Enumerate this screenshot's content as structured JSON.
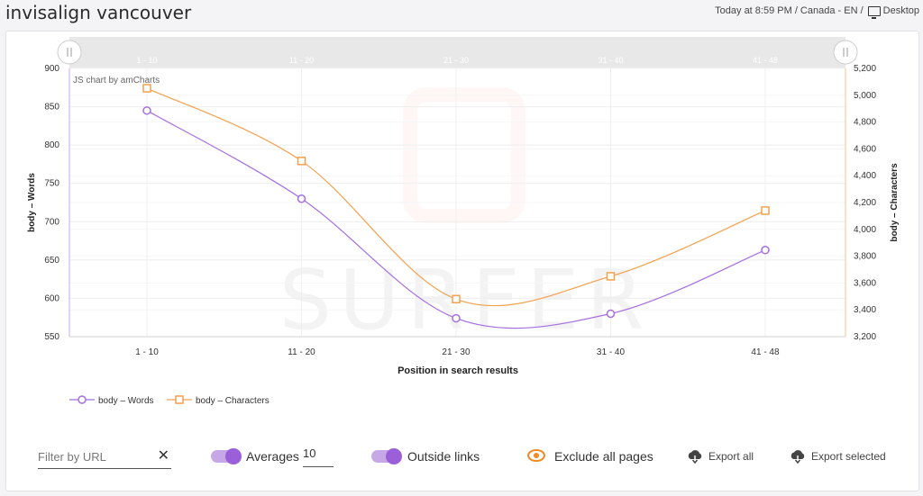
{
  "header": {
    "title": "invisalign vancouver",
    "meta_time": "Today at 8:59 PM / Canada - EN /",
    "meta_device": "Desktop"
  },
  "chart_data": {
    "type": "line",
    "categories": [
      "1 - 10",
      "11 - 20",
      "21 - 30",
      "31 - 40",
      "41 - 48"
    ],
    "series": [
      {
        "name": "body – Words",
        "axis": "left",
        "values": [
          845,
          730,
          574,
          580,
          663
        ],
        "color": "#a66ee0",
        "marker": "circle"
      },
      {
        "name": "body – Characters",
        "axis": "right",
        "values": [
          5052,
          4510,
          3480,
          3650,
          4140
        ],
        "color": "#f4a04c",
        "marker": "square"
      }
    ],
    "xlabel": "Position in search results",
    "ylabel_left": "body – Words",
    "ylabel_right": "body – Characters",
    "ylim_left": [
      550,
      900
    ],
    "ylim_right": [
      3200,
      5200
    ],
    "yticks_left": [
      "550",
      "600",
      "650",
      "700",
      "750",
      "800",
      "850",
      "900"
    ],
    "yticks_right": [
      "3,200",
      "3,400",
      "3,600",
      "3,800",
      "4,000",
      "4,200",
      "4,400",
      "4,600",
      "4,800",
      "5,000",
      "5,200"
    ],
    "credit": "JS chart by amCharts",
    "watermark": "SURFER",
    "legend_position": "bottom-left",
    "grid": true
  },
  "controls": {
    "filter_placeholder": "Filter by URL",
    "clear_icon": "close-icon",
    "averages_label": "Averages",
    "averages_value": "10",
    "outside_links_label": "Outside links",
    "exclude_label": "Exclude all pages",
    "export_all_label": "Export all",
    "export_selected_label": "Export selected",
    "accent_color": "#9b5fd9",
    "eye_color": "#f08a24"
  }
}
